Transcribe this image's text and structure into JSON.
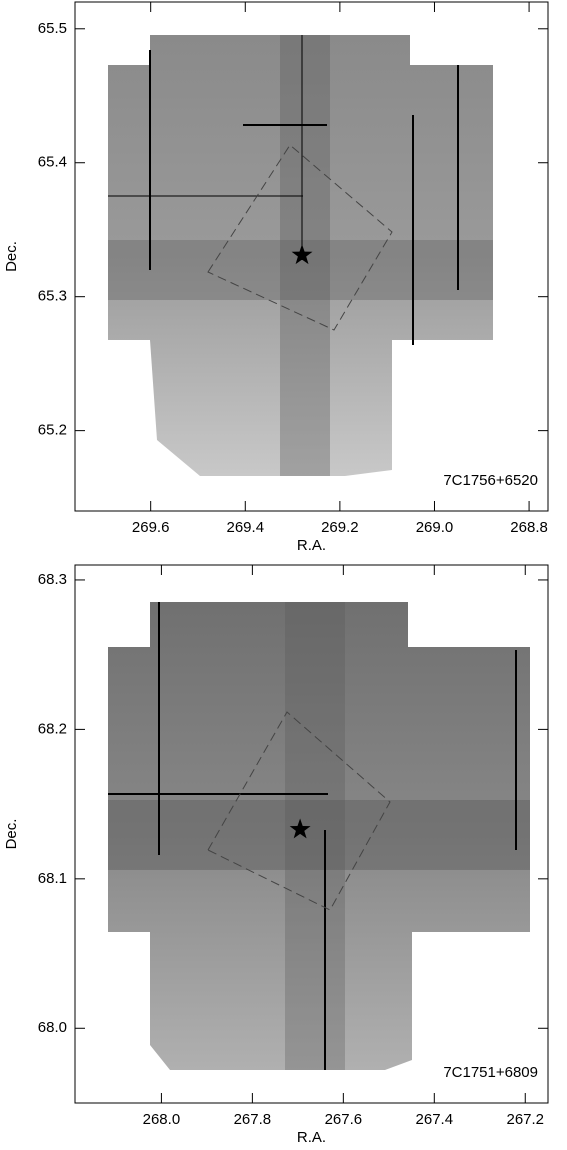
{
  "chart_data": [
    {
      "type": "image",
      "annotation": "7C1756+6520",
      "xlabel": "R.A.",
      "ylabel": "Dec.",
      "xlim": [
        269.76,
        268.76
      ],
      "ylim": [
        65.14,
        65.52
      ],
      "xticks": [
        269.6,
        269.4,
        269.2,
        {
          "value": 269,
          "label": "269.0"
        },
        268.8
      ],
      "yticks": [
        65.2,
        65.3,
        65.4,
        65.5
      ],
      "marker": {
        "ra": 269.28,
        "dec": 65.331
      }
    },
    {
      "type": "image",
      "annotation": "7C1751+6809",
      "xlabel": "R.A.",
      "ylabel": "Dec.",
      "xlim": [
        268.19,
        267.15
      ],
      "ylim": [
        67.95,
        68.31
      ],
      "xticks": [
        {
          "value": 268,
          "label": "268.0"
        },
        267.8,
        267.6,
        267.4,
        267.2
      ],
      "yticks": [
        {
          "value": 68,
          "label": "68.0"
        },
        68.1,
        68.2,
        68.3
      ],
      "marker": {
        "ra": 267.695,
        "dec": 68.133
      }
    }
  ]
}
